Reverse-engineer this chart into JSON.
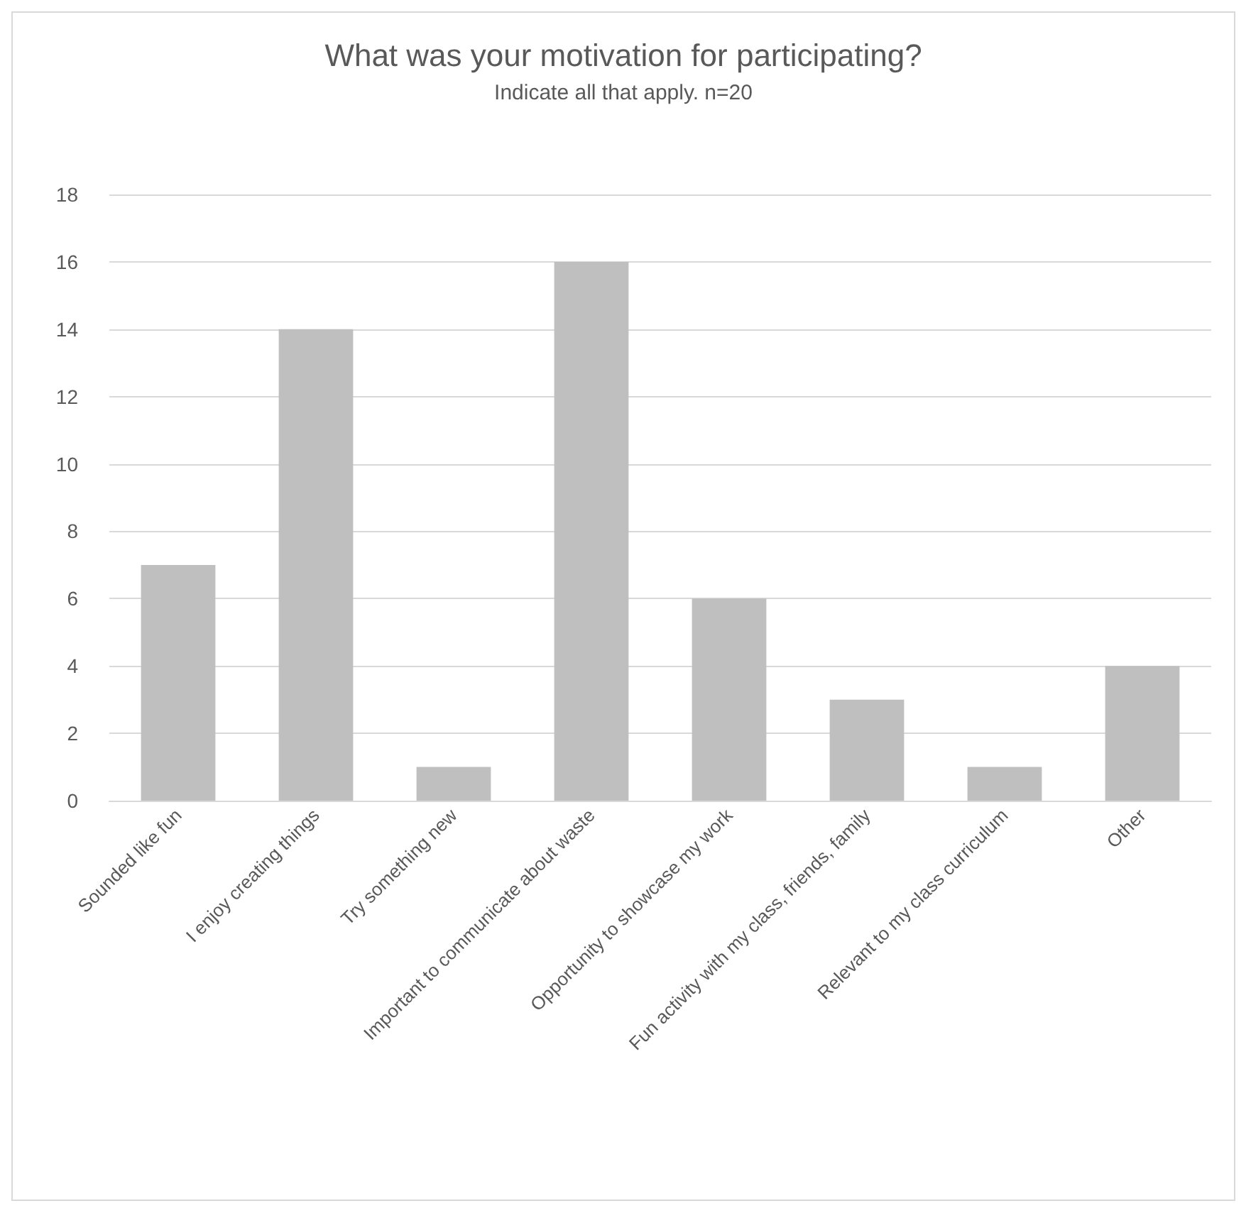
{
  "chart_data": {
    "type": "bar",
    "title": "What was your motivation for participating?",
    "subtitle": "Indicate all that apply. n=20",
    "categories": [
      "Sounded like fun",
      "I enjoy creating things",
      "Try something new",
      "Important to communicate about waste",
      "Opportunity to showcase my work",
      "Fun activity with my class, friends, family",
      "Relevant to my class curriculum",
      "Other"
    ],
    "values": [
      7,
      14,
      1,
      16,
      6,
      3,
      1,
      4
    ],
    "color": "#bfbfbf",
    "ylim": [
      0,
      18
    ],
    "yticks": [
      0,
      2,
      4,
      6,
      8,
      10,
      12,
      14,
      16,
      18
    ],
    "grid": "y"
  }
}
